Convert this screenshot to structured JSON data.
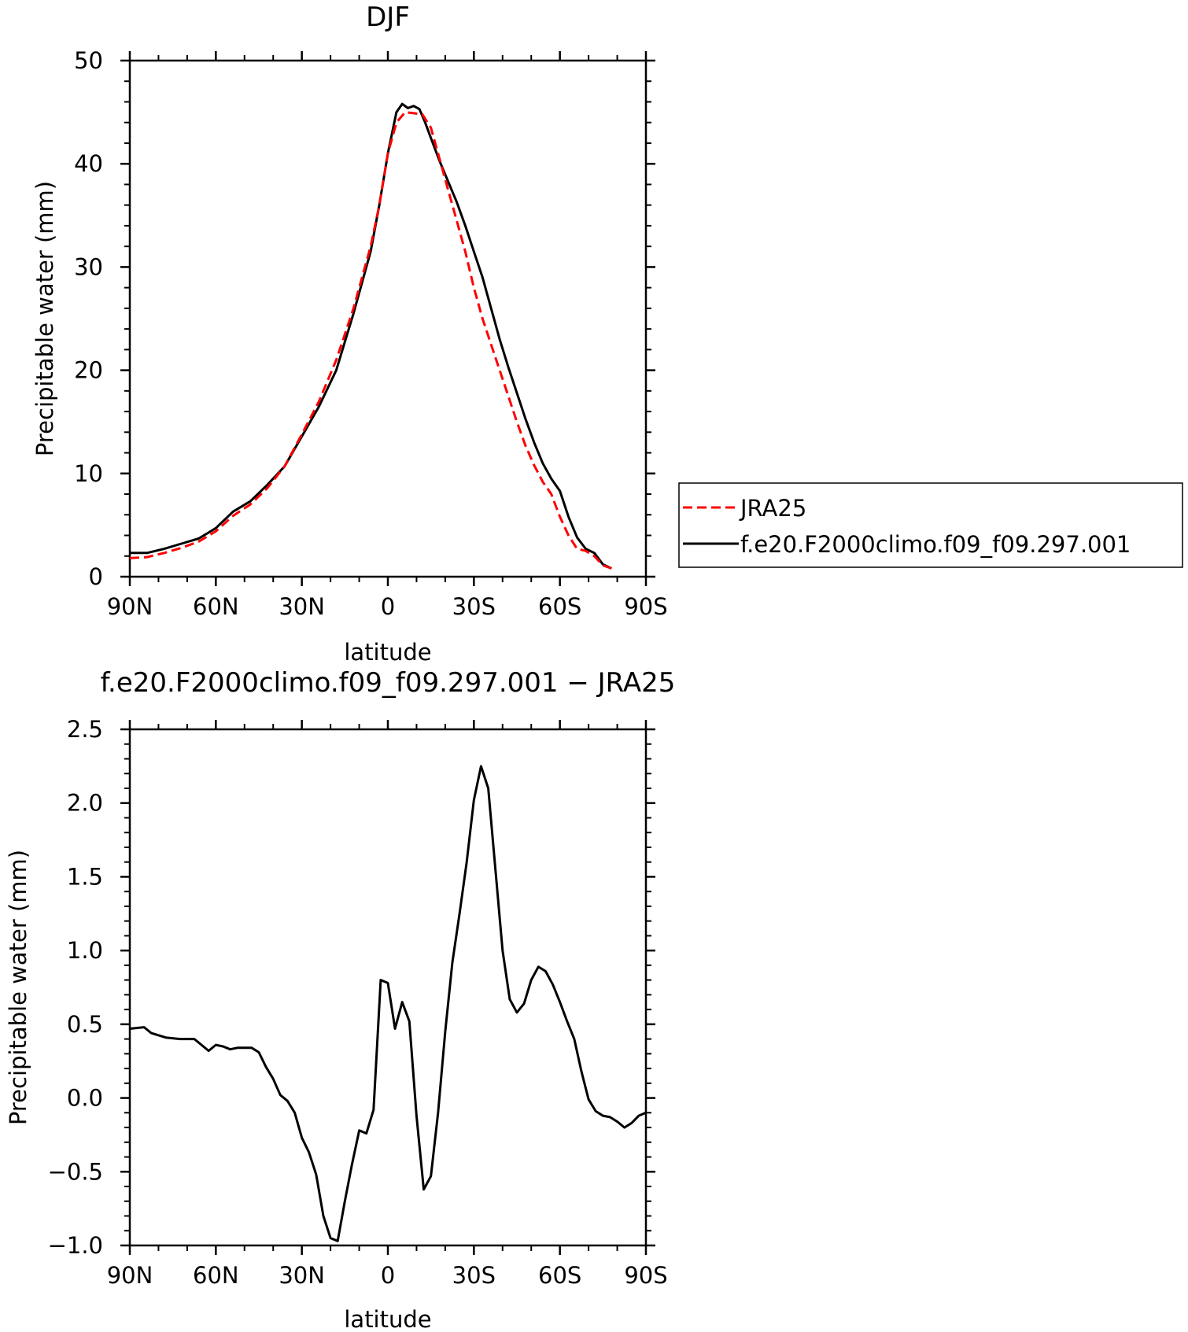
{
  "chart_data": [
    {
      "type": "line",
      "title": "DJF",
      "xlabel": "latitude",
      "ylabel": "Precipitable water (mm)",
      "xlim": [
        90,
        -90
      ],
      "ylim": [
        0,
        50
      ],
      "x_tick_values": [
        90,
        60,
        30,
        0,
        -30,
        -60,
        -90
      ],
      "x_tick_labels": [
        "90N",
        "60N",
        "30N",
        "0",
        "30S",
        "60S",
        "90S"
      ],
      "y_tick_values": [
        0,
        10,
        20,
        30,
        40,
        50
      ],
      "y_tick_labels": [
        "0",
        "10",
        "20",
        "30",
        "40",
        "50"
      ],
      "grid": false,
      "legend_position": "right",
      "series": [
        {
          "name": "JRA25",
          "color": "#ff0000",
          "dash": "dashed",
          "points": [
            [
              90,
              1.8
            ],
            [
              84,
              1.9
            ],
            [
              78,
              2.3
            ],
            [
              72,
              2.8
            ],
            [
              66,
              3.4
            ],
            [
              60,
              4.4
            ],
            [
              54,
              5.9
            ],
            [
              48,
              7.0
            ],
            [
              42,
              8.6
            ],
            [
              36,
              10.7
            ],
            [
              30,
              13.8
            ],
            [
              24,
              17.0
            ],
            [
              18,
              21.0
            ],
            [
              12,
              26.0
            ],
            [
              6,
              32.0
            ],
            [
              3,
              36.0
            ],
            [
              0,
              41.0
            ],
            [
              -3,
              44.0
            ],
            [
              -6,
              45.0
            ],
            [
              -9,
              44.9
            ],
            [
              -12,
              44.8
            ],
            [
              -15,
              43.5
            ],
            [
              -18,
              40.5
            ],
            [
              -21,
              37.5
            ],
            [
              -24,
              34.5
            ],
            [
              -27,
              31.5
            ],
            [
              -30,
              28.0
            ],
            [
              -33,
              25.0
            ],
            [
              -36,
              22.5
            ],
            [
              -39,
              20.0
            ],
            [
              -42,
              17.5
            ],
            [
              -45,
              15.0
            ],
            [
              -48,
              12.7
            ],
            [
              -51,
              10.8
            ],
            [
              -54,
              9.2
            ],
            [
              -57,
              8.0
            ],
            [
              -60,
              5.8
            ],
            [
              -63,
              4.0
            ],
            [
              -66,
              2.7
            ],
            [
              -69,
              2.5
            ],
            [
              -72,
              2.0
            ],
            [
              -75,
              1.1
            ],
            [
              -78,
              0.8
            ]
          ]
        },
        {
          "name": "f.e20.F2000climo.f09_f09.297.001",
          "color": "#000000",
          "dash": "solid",
          "points": [
            [
              90,
              2.3
            ],
            [
              84,
              2.3
            ],
            [
              78,
              2.7
            ],
            [
              72,
              3.2
            ],
            [
              66,
              3.7
            ],
            [
              60,
              4.7
            ],
            [
              54,
              6.3
            ],
            [
              48,
              7.3
            ],
            [
              42,
              8.9
            ],
            [
              36,
              10.7
            ],
            [
              30,
              13.6
            ],
            [
              24,
              16.5
            ],
            [
              18,
              20.0
            ],
            [
              12,
              25.5
            ],
            [
              6,
              31.5
            ],
            [
              3,
              36.0
            ],
            [
              0,
              41.0
            ],
            [
              -3,
              45.0
            ],
            [
              -5,
              45.8
            ],
            [
              -7,
              45.4
            ],
            [
              -9,
              45.6
            ],
            [
              -11,
              45.3
            ],
            [
              -13,
              44.0
            ],
            [
              -15,
              42.5
            ],
            [
              -18,
              40.3
            ],
            [
              -21,
              38.3
            ],
            [
              -24,
              36.3
            ],
            [
              -27,
              34.0
            ],
            [
              -30,
              31.5
            ],
            [
              -33,
              29.0
            ],
            [
              -36,
              26.0
            ],
            [
              -39,
              23.0
            ],
            [
              -42,
              20.3
            ],
            [
              -45,
              17.8
            ],
            [
              -48,
              15.3
            ],
            [
              -51,
              13.0
            ],
            [
              -54,
              11.0
            ],
            [
              -57,
              9.5
            ],
            [
              -60,
              8.3
            ],
            [
              -63,
              5.8
            ],
            [
              -66,
              3.8
            ],
            [
              -69,
              2.7
            ],
            [
              -72,
              2.3
            ],
            [
              -75,
              1.2
            ],
            [
              -78,
              0.8
            ]
          ]
        }
      ]
    },
    {
      "type": "line",
      "title": "f.e20.F2000climo.f09_f09.297.001 - JRA25",
      "xlabel": "latitude",
      "ylabel": "Precipitable water (mm)",
      "xlim": [
        90,
        -90
      ],
      "ylim": [
        -1.0,
        2.5
      ],
      "x_tick_values": [
        90,
        60,
        30,
        0,
        -30,
        -60,
        -90
      ],
      "x_tick_labels": [
        "90N",
        "60N",
        "30N",
        "0",
        "30S",
        "60S",
        "90S"
      ],
      "y_tick_values": [
        -1.0,
        -0.5,
        0.0,
        0.5,
        1.0,
        1.5,
        2.0,
        2.5
      ],
      "y_tick_labels": [
        "-1.0",
        "-0.5",
        "0.0",
        "0.5",
        "1.0",
        "1.5",
        "2.0",
        "2.5"
      ],
      "grid": false,
      "series": [
        {
          "color": "#000000",
          "dash": "solid",
          "points": [
            [
              90,
              0.47
            ],
            [
              85,
              0.48
            ],
            [
              82.5,
              0.44
            ],
            [
              77.5,
              0.41
            ],
            [
              72.5,
              0.4
            ],
            [
              67.5,
              0.4
            ],
            [
              65,
              0.36
            ],
            [
              62.5,
              0.32
            ],
            [
              60,
              0.36
            ],
            [
              57.5,
              0.35
            ],
            [
              55,
              0.33
            ],
            [
              52.5,
              0.34
            ],
            [
              50,
              0.34
            ],
            [
              47.5,
              0.34
            ],
            [
              45,
              0.31
            ],
            [
              42.5,
              0.21
            ],
            [
              40,
              0.13
            ],
            [
              37.5,
              0.02
            ],
            [
              35,
              -0.02
            ],
            [
              32.5,
              -0.1
            ],
            [
              30,
              -0.27
            ],
            [
              27.5,
              -0.37
            ],
            [
              25,
              -0.52
            ],
            [
              22.5,
              -0.8
            ],
            [
              20,
              -0.95
            ],
            [
              17.5,
              -0.97
            ],
            [
              15,
              -0.7
            ],
            [
              12.5,
              -0.45
            ],
            [
              10,
              -0.22
            ],
            [
              7.5,
              -0.24
            ],
            [
              5,
              -0.08
            ],
            [
              2.5,
              0.8
            ],
            [
              0,
              0.78
            ],
            [
              -2.5,
              0.47
            ],
            [
              -5,
              0.65
            ],
            [
              -7.5,
              0.52
            ],
            [
              -10,
              -0.12
            ],
            [
              -12.5,
              -0.62
            ],
            [
              -15,
              -0.53
            ],
            [
              -17.5,
              -0.1
            ],
            [
              -20,
              0.45
            ],
            [
              -22.5,
              0.92
            ],
            [
              -25,
              1.25
            ],
            [
              -27.5,
              1.6
            ],
            [
              -30,
              2.02
            ],
            [
              -32.5,
              2.25
            ],
            [
              -35,
              2.1
            ],
            [
              -37.5,
              1.55
            ],
            [
              -40,
              1.0
            ],
            [
              -42.5,
              0.67
            ],
            [
              -45,
              0.58
            ],
            [
              -47.5,
              0.64
            ],
            [
              -50,
              0.8
            ],
            [
              -52.5,
              0.89
            ],
            [
              -55,
              0.86
            ],
            [
              -57.5,
              0.77
            ],
            [
              -60,
              0.65
            ],
            [
              -62.5,
              0.52
            ],
            [
              -65,
              0.4
            ],
            [
              -67.5,
              0.18
            ],
            [
              -70,
              -0.01
            ],
            [
              -72.5,
              -0.09
            ],
            [
              -75,
              -0.12
            ],
            [
              -77.5,
              -0.13
            ],
            [
              -80,
              -0.16
            ],
            [
              -82.5,
              -0.2
            ],
            [
              -85,
              -0.17
            ],
            [
              -87.5,
              -0.12
            ],
            [
              -90,
              -0.1
            ]
          ]
        }
      ]
    }
  ]
}
